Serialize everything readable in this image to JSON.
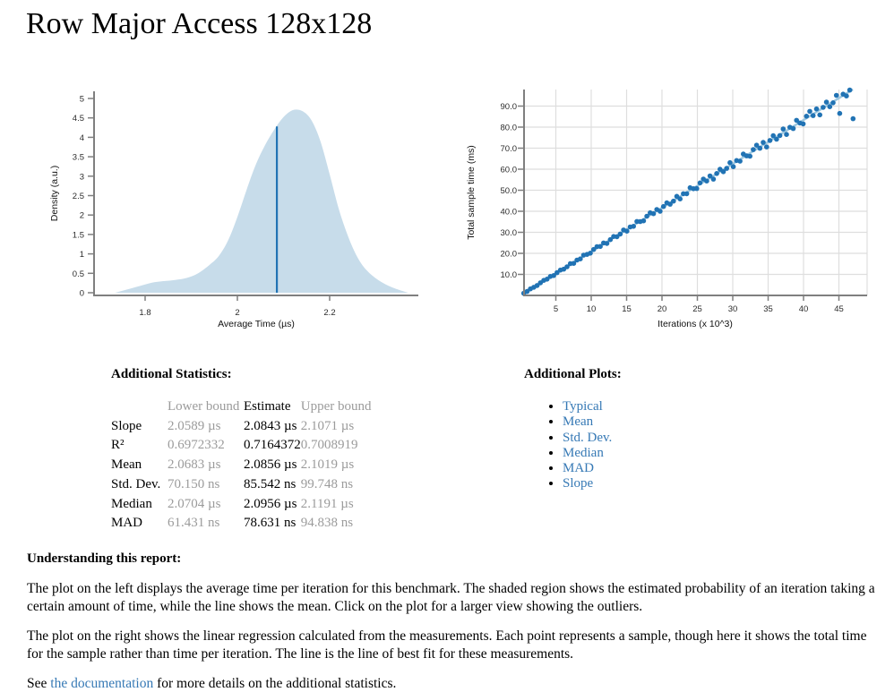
{
  "page": {
    "title": "Row Major Access 128x128"
  },
  "colors": {
    "accent_blue": "#2173b4",
    "light_fill": "#c7dcea",
    "regression_line": "#9cc7e0",
    "link_blue": "#3679b5",
    "grid": "#dedede",
    "axis": "#7f7f7f",
    "tick_text": "#2b2b2b",
    "muted_text": "#9b9b9b"
  },
  "chart_data": [
    {
      "type": "area",
      "title": "probability density of average iteration time",
      "xlabel": "Average Time (µs)",
      "ylabel": "Density (a.u.)",
      "xlim": [
        1.71,
        2.4
      ],
      "ylim": [
        0,
        5
      ],
      "grid": false,
      "xticks": [
        1.8,
        2,
        2.2
      ],
      "xtick_labels": [
        "1.8",
        "2",
        "2.2"
      ],
      "yticks": [
        0,
        0.5,
        1,
        1.5,
        2,
        2.5,
        3,
        3.5,
        4,
        4.5,
        5
      ],
      "ytick_labels": [
        "0",
        "0.5",
        "1",
        "1.5",
        "2",
        "2.5",
        "3",
        "3.5",
        "4",
        "4.5",
        "5"
      ],
      "x": [
        1.735,
        1.76,
        1.79,
        1.815,
        1.84,
        1.865,
        1.89,
        1.915,
        1.94,
        1.96,
        1.98,
        2.0,
        2.02,
        2.04,
        2.06,
        2.08,
        2.1,
        2.12,
        2.14,
        2.16,
        2.18,
        2.2,
        2.22,
        2.24,
        2.26,
        2.28,
        2.305,
        2.335,
        2.37
      ],
      "y": [
        0,
        0.08,
        0.18,
        0.26,
        0.3,
        0.33,
        0.38,
        0.5,
        0.72,
        0.95,
        1.35,
        1.95,
        2.65,
        3.3,
        3.8,
        4.2,
        4.52,
        4.7,
        4.68,
        4.45,
        3.9,
        3.05,
        2.15,
        1.45,
        0.92,
        0.58,
        0.33,
        0.14,
        0
      ],
      "mean_line": {
        "x": 2.0856,
        "y": 4.28
      }
    },
    {
      "type": "scatter",
      "title": "linear regression of total sample time vs iterations",
      "xlabel": "Iterations (x 10^3)",
      "ylabel": "Total sample time (ms)",
      "xlim": [
        0.4,
        49
      ],
      "ylim": [
        0,
        98
      ],
      "grid": true,
      "xticks": [
        5,
        10,
        15,
        20,
        25,
        30,
        35,
        40,
        45
      ],
      "xtick_labels": [
        "5",
        "10",
        "15",
        "20",
        "25",
        "30",
        "35",
        "40",
        "45"
      ],
      "yticks": [
        10,
        20,
        30,
        40,
        50,
        60,
        70,
        80,
        90
      ],
      "ytick_labels": [
        "10.0",
        "20.0",
        "30.0",
        "40.0",
        "50.0",
        "60.0",
        "70.0",
        "80.0",
        "90.0"
      ],
      "regression_line": {
        "x1": 0.57,
        "y1": 1.19,
        "x2": 46.97,
        "y2": 97.9
      },
      "points": [
        [
          0.47,
          1.02
        ],
        [
          0.94,
          1.88
        ],
        [
          1.41,
          3.11
        ],
        [
          1.88,
          3.88
        ],
        [
          2.35,
          4.71
        ],
        [
          2.82,
          5.99
        ],
        [
          3.29,
          7.14
        ],
        [
          3.76,
          7.74
        ],
        [
          4.23,
          9.03
        ],
        [
          4.7,
          9.44
        ],
        [
          5.17,
          10.82
        ],
        [
          5.64,
          12.06
        ],
        [
          6.11,
          12.48
        ],
        [
          6.58,
          13.62
        ],
        [
          7.05,
          15.1
        ],
        [
          7.52,
          15.22
        ],
        [
          7.99,
          16.79
        ],
        [
          8.46,
          17.37
        ],
        [
          8.93,
          19.13
        ],
        [
          9.4,
          19.5
        ],
        [
          9.87,
          20.07
        ],
        [
          10.34,
          21.83
        ],
        [
          10.81,
          23.21
        ],
        [
          11.28,
          23.29
        ],
        [
          11.75,
          24.95
        ],
        [
          12.22,
          24.72
        ],
        [
          12.69,
          26.53
        ],
        [
          13.16,
          28.02
        ],
        [
          13.63,
          27.93
        ],
        [
          14.1,
          29.21
        ],
        [
          14.57,
          31.1
        ],
        [
          15.04,
          30.54
        ],
        [
          15.51,
          32.57
        ],
        [
          15.98,
          32.86
        ],
        [
          16.45,
          35.16
        ],
        [
          16.92,
          35.11
        ],
        [
          17.39,
          35.44
        ],
        [
          17.86,
          37.67
        ],
        [
          18.33,
          39.28
        ],
        [
          18.8,
          38.84
        ],
        [
          19.27,
          40.87
        ],
        [
          19.74,
          40.0
        ],
        [
          20.21,
          42.25
        ],
        [
          20.68,
          43.98
        ],
        [
          21.15,
          43.38
        ],
        [
          21.62,
          44.8
        ],
        [
          22.09,
          47.11
        ],
        [
          22.56,
          45.86
        ],
        [
          23.03,
          48.35
        ],
        [
          23.5,
          48.34
        ],
        [
          23.97,
          51.18
        ],
        [
          24.44,
          50.72
        ],
        [
          24.91,
          50.8
        ],
        [
          25.38,
          53.5
        ],
        [
          25.85,
          55.34
        ],
        [
          26.32,
          54.39
        ],
        [
          26.79,
          56.79
        ],
        [
          27.26,
          55.28
        ],
        [
          27.73,
          57.96
        ],
        [
          28.2,
          59.95
        ],
        [
          28.67,
          58.82
        ],
        [
          29.14,
          60.39
        ],
        [
          29.61,
          63.11
        ],
        [
          30.08,
          61.19
        ],
        [
          30.55,
          64.12
        ],
        [
          31.02,
          63.83
        ],
        [
          31.49,
          67.21
        ],
        [
          31.96,
          66.33
        ],
        [
          32.43,
          66.16
        ],
        [
          32.9,
          69.34
        ],
        [
          33.37,
          71.41
        ],
        [
          33.84,
          69.94
        ],
        [
          34.31,
          72.72
        ],
        [
          34.78,
          70.56
        ],
        [
          35.25,
          73.68
        ],
        [
          35.72,
          75.91
        ],
        [
          36.19,
          74.27
        ],
        [
          36.66,
          75.98
        ],
        [
          37.13,
          79.12
        ],
        [
          37.6,
          76.51
        ],
        [
          38.07,
          79.9
        ],
        [
          38.54,
          79.32
        ],
        [
          39.01,
          83.23
        ],
        [
          39.48,
          81.94
        ],
        [
          39.95,
          81.53
        ],
        [
          40.42,
          85.18
        ],
        [
          40.89,
          87.48
        ],
        [
          41.36,
          85.49
        ],
        [
          41.83,
          88.64
        ],
        [
          42.3,
          85.84
        ],
        [
          42.77,
          89.39
        ],
        [
          43.24,
          91.87
        ],
        [
          43.71,
          89.71
        ],
        [
          44.18,
          91.57
        ],
        [
          44.65,
          95.12
        ],
        [
          45.12,
          86.5
        ],
        [
          45.59,
          95.68
        ],
        [
          46.06,
          94.81
        ],
        [
          46.53,
          97.6
        ],
        [
          47.0,
          84.0
        ]
      ]
    }
  ],
  "stats": {
    "heading": "Additional Statistics:",
    "columns": [
      "Lower bound",
      "Estimate",
      "Upper bound"
    ],
    "rows": [
      {
        "label": "Slope",
        "lower": "2.0589 µs",
        "estimate": "2.0843 µs",
        "upper": "2.1071 µs"
      },
      {
        "label": "R²",
        "lower": "0.6972332",
        "estimate": "0.7164372",
        "upper": "0.7008919"
      },
      {
        "label": "Mean",
        "lower": "2.0683 µs",
        "estimate": "2.0856 µs",
        "upper": "2.1019 µs"
      },
      {
        "label": "Std. Dev.",
        "lower": "70.150 ns",
        "estimate": "85.542 ns",
        "upper": "99.748 ns"
      },
      {
        "label": "Median",
        "lower": "2.0704 µs",
        "estimate": "2.0956 µs",
        "upper": "2.1191 µs"
      },
      {
        "label": "MAD",
        "lower": "61.431 ns",
        "estimate": "78.631 ns",
        "upper": "94.838 ns"
      }
    ]
  },
  "plots": {
    "heading": "Additional Plots:",
    "links": [
      "Typical",
      "Mean",
      "Std. Dev.",
      "Median",
      "MAD",
      "Slope"
    ]
  },
  "explanation": {
    "heading": "Understanding this report:",
    "p1": "The plot on the left displays the average time per iteration for this benchmark. The shaded region shows the estimated probability of an iteration taking a certain amount of time, while the line shows the mean. Click on the plot for a larger view showing the outliers.",
    "p2": "The plot on the right shows the linear regression calculated from the measurements. Each point represents a sample, though here it shows the total time for the sample rather than time per iteration. The line is the line of best fit for these measurements.",
    "p3_prefix": "See ",
    "p3_link": "the documentation",
    "p3_suffix": " for more details on the additional statistics."
  }
}
